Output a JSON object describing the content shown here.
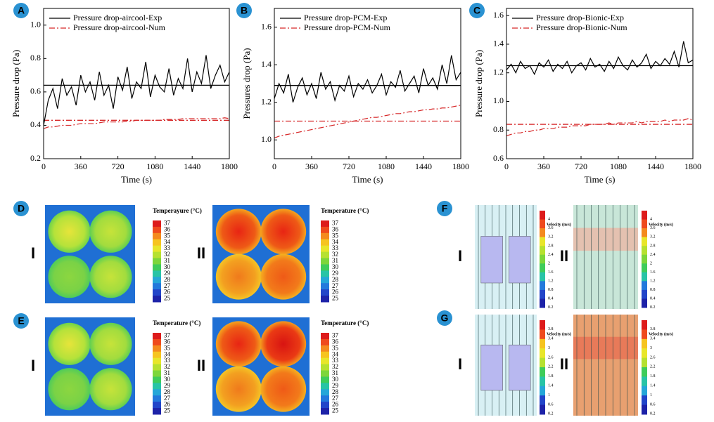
{
  "chart_data": [
    {
      "type": "line",
      "panel": "A",
      "xlabel": "Time (s)",
      "ylabel": "Pressure drop (Pa)",
      "x": [
        0,
        45,
        90,
        135,
        180,
        225,
        270,
        315,
        360,
        405,
        450,
        495,
        540,
        585,
        630,
        675,
        720,
        765,
        810,
        855,
        900,
        945,
        990,
        1035,
        1080,
        1125,
        1170,
        1215,
        1260,
        1305,
        1350,
        1395,
        1440,
        1485,
        1530,
        1575,
        1620,
        1665,
        1710,
        1755,
        1800
      ],
      "series": [
        {
          "name": "Pressure drop-aircool-Exp",
          "color": "#000000",
          "style": "solid",
          "values": [
            0.4,
            0.55,
            0.62,
            0.5,
            0.68,
            0.58,
            0.63,
            0.52,
            0.7,
            0.6,
            0.66,
            0.55,
            0.72,
            0.58,
            0.64,
            0.5,
            0.69,
            0.61,
            0.75,
            0.56,
            0.66,
            0.62,
            0.78,
            0.57,
            0.7,
            0.63,
            0.6,
            0.74,
            0.58,
            0.68,
            0.62,
            0.8,
            0.6,
            0.72,
            0.65,
            0.82,
            0.62,
            0.7,
            0.76,
            0.66,
            0.72
          ]
        },
        {
          "name": "Pressure drop-aircool-Num",
          "color": "#d62728",
          "style": "dashdot",
          "values": [
            0.38,
            0.39,
            0.39,
            0.395,
            0.4,
            0.4,
            0.4,
            0.405,
            0.41,
            0.41,
            0.41,
            0.41,
            0.415,
            0.42,
            0.42,
            0.42,
            0.42,
            0.42,
            0.425,
            0.425,
            0.43,
            0.43,
            0.43,
            0.43,
            0.43,
            0.43,
            0.435,
            0.435,
            0.435,
            0.435,
            0.44,
            0.44,
            0.44,
            0.44,
            0.44,
            0.44,
            0.44,
            0.44,
            0.44,
            0.445,
            0.44
          ]
        }
      ],
      "reference_lines": [
        {
          "value": 0.64,
          "color": "#000000",
          "style": "solid"
        },
        {
          "value": 0.43,
          "color": "#d62728",
          "style": "dashdot"
        }
      ],
      "xlim": [
        0,
        1800
      ],
      "xticks": [
        0,
        360,
        720,
        1080,
        1440,
        1800
      ],
      "ylim": [
        0.2,
        1.1
      ],
      "yticks": [
        0.2,
        0.4,
        0.6,
        0.8,
        {
          "value": 1,
          "label": "1.0"
        }
      ]
    },
    {
      "type": "line",
      "panel": "B",
      "xlabel": "Time (s)",
      "ylabel": "Pressures drop (Pa)",
      "x": [
        0,
        45,
        90,
        135,
        180,
        225,
        270,
        315,
        360,
        405,
        450,
        495,
        540,
        585,
        630,
        675,
        720,
        765,
        810,
        855,
        900,
        945,
        990,
        1035,
        1080,
        1125,
        1170,
        1215,
        1260,
        1305,
        1350,
        1395,
        1440,
        1485,
        1530,
        1575,
        1620,
        1665,
        1710,
        1755,
        1800
      ],
      "series": [
        {
          "name": "Pressure drop-PCM-Exp",
          "color": "#000000",
          "style": "solid",
          "values": [
            1.22,
            1.3,
            1.25,
            1.35,
            1.2,
            1.28,
            1.33,
            1.24,
            1.3,
            1.22,
            1.36,
            1.27,
            1.31,
            1.21,
            1.29,
            1.26,
            1.34,
            1.23,
            1.3,
            1.27,
            1.32,
            1.25,
            1.29,
            1.35,
            1.24,
            1.31,
            1.28,
            1.37,
            1.26,
            1.3,
            1.34,
            1.25,
            1.38,
            1.29,
            1.33,
            1.27,
            1.4,
            1.3,
            1.45,
            1.32,
            1.36
          ]
        },
        {
          "name": "Pressure drop-PCM-Num",
          "color": "#d62728",
          "style": "dashdot",
          "values": [
            1.01,
            1.02,
            1.025,
            1.03,
            1.035,
            1.04,
            1.045,
            1.05,
            1.055,
            1.06,
            1.065,
            1.07,
            1.075,
            1.08,
            1.085,
            1.09,
            1.095,
            1.1,
            1.105,
            1.11,
            1.115,
            1.12,
            1.12,
            1.125,
            1.13,
            1.135,
            1.14,
            1.14,
            1.145,
            1.15,
            1.15,
            1.155,
            1.16,
            1.16,
            1.165,
            1.165,
            1.17,
            1.17,
            1.175,
            1.18,
            1.185
          ]
        }
      ],
      "reference_lines": [
        {
          "value": 1.29,
          "color": "#000000",
          "style": "solid"
        },
        {
          "value": 1.1,
          "color": "#d62728",
          "style": "dashdot"
        }
      ],
      "xlim": [
        0,
        1800
      ],
      "xticks": [
        0,
        360,
        720,
        1080,
        1440,
        1800
      ],
      "ylim": [
        0.9,
        1.7
      ],
      "yticks": [
        {
          "value": 1,
          "label": "1.0"
        },
        1.2,
        1.4,
        1.6
      ]
    },
    {
      "type": "line",
      "panel": "C",
      "xlabel": "Time (s)",
      "ylabel": "Pressure drop (Pa)",
      "x": [
        0,
        45,
        90,
        135,
        180,
        225,
        270,
        315,
        360,
        405,
        450,
        495,
        540,
        585,
        630,
        675,
        720,
        765,
        810,
        855,
        900,
        945,
        990,
        1035,
        1080,
        1125,
        1170,
        1215,
        1260,
        1305,
        1350,
        1395,
        1440,
        1485,
        1530,
        1575,
        1620,
        1665,
        1710,
        1755,
        1800
      ],
      "series": [
        {
          "name": "Pressure drop-Bionic-Exp",
          "color": "#000000",
          "style": "solid",
          "values": [
            1.22,
            1.26,
            1.2,
            1.28,
            1.23,
            1.25,
            1.19,
            1.27,
            1.24,
            1.29,
            1.21,
            1.26,
            1.23,
            1.28,
            1.2,
            1.25,
            1.27,
            1.22,
            1.3,
            1.24,
            1.26,
            1.21,
            1.28,
            1.23,
            1.31,
            1.25,
            1.22,
            1.29,
            1.24,
            1.27,
            1.33,
            1.23,
            1.28,
            1.25,
            1.3,
            1.26,
            1.35,
            1.24,
            1.42,
            1.27,
            1.29
          ]
        },
        {
          "name": "Pressure drop-Bionic-Num",
          "color": "#d62728",
          "style": "dashdot",
          "values": [
            0.76,
            0.77,
            0.78,
            0.78,
            0.79,
            0.79,
            0.8,
            0.8,
            0.81,
            0.81,
            0.81,
            0.82,
            0.82,
            0.82,
            0.83,
            0.83,
            0.83,
            0.83,
            0.84,
            0.84,
            0.84,
            0.84,
            0.85,
            0.84,
            0.85,
            0.85,
            0.85,
            0.85,
            0.86,
            0.85,
            0.86,
            0.86,
            0.86,
            0.86,
            0.87,
            0.86,
            0.87,
            0.87,
            0.87,
            0.88,
            0.87
          ]
        }
      ],
      "reference_lines": [
        {
          "value": 1.25,
          "color": "#000000",
          "style": "solid"
        },
        {
          "value": 0.84,
          "color": "#d62728",
          "style": "dashdot"
        }
      ],
      "xlim": [
        0,
        1800
      ],
      "xticks": [
        0,
        360,
        720,
        1080,
        1440,
        1800
      ],
      "ylim": [
        0.6,
        1.65
      ],
      "yticks": [
        0.6,
        0.8,
        {
          "value": 1,
          "label": "1.0"
        },
        1.2,
        1.4,
        1.6
      ]
    }
  ],
  "panels": [
    {
      "label": "D",
      "views": [
        {
          "roman": "I",
          "colorbar_title": "Temperayure (°C)",
          "ticks": [
            37,
            36,
            35,
            34,
            33,
            32,
            31,
            30,
            29,
            28,
            27,
            26,
            25
          ]
        },
        {
          "roman": "II",
          "colorbar_title": "Temperature (°C)",
          "ticks": [
            37,
            36,
            35,
            34,
            33,
            32,
            31,
            30,
            29,
            28,
            27,
            26,
            25
          ]
        }
      ]
    },
    {
      "label": "E",
      "views": [
        {
          "roman": "I",
          "colorbar_title": "Temperature (°C)",
          "ticks": [
            37,
            36,
            35,
            34,
            33,
            32,
            31,
            30,
            29,
            28,
            27,
            26,
            25
          ]
        },
        {
          "roman": "II",
          "colorbar_title": "Temperature (°C)",
          "ticks": [
            37,
            36,
            35,
            34,
            33,
            32,
            31,
            30,
            29,
            28,
            27,
            26,
            25
          ]
        }
      ]
    },
    {
      "label": "F",
      "views": [
        {
          "roman": "I",
          "colorbar_title": "Velocity (m/s)",
          "ticks": [
            4,
            3.6,
            3.2,
            2.8,
            2.4,
            2,
            1.6,
            1.2,
            0.8,
            0.4,
            0.2
          ]
        },
        {
          "roman": "II",
          "colorbar_title": "Velocity (m/s)",
          "ticks": [
            4,
            3.6,
            3.2,
            2.8,
            2.4,
            2,
            1.6,
            1.2,
            0.8,
            0.4,
            0.2
          ]
        }
      ]
    },
    {
      "label": "G",
      "views": [
        {
          "roman": "I",
          "colorbar_title": "Velocity (m/s)",
          "ticks": [
            3.8,
            3.4,
            3,
            2.6,
            2.2,
            1.8,
            1.4,
            1,
            0.6,
            0.2
          ]
        },
        {
          "roman": "II",
          "colorbar_title": "Velocity (m/s)",
          "ticks": [
            3.8,
            3.4,
            3,
            2.6,
            2.2,
            1.8,
            1.4,
            1,
            0.6,
            0.2
          ]
        }
      ]
    }
  ]
}
